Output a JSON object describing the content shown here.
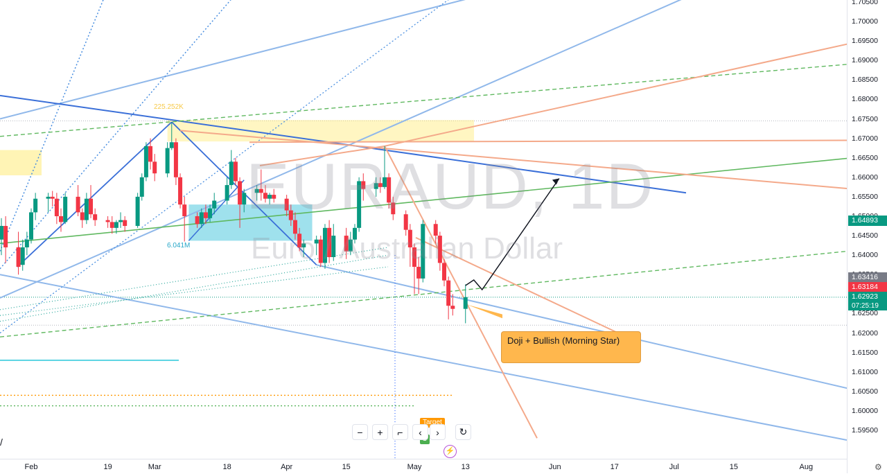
{
  "chart_data": {
    "type": "candlestick",
    "title": "EURAUD, 1D",
    "subtitle": "Euro / Australian Dollar",
    "ylim": [
      1.5925,
      1.7055
    ],
    "y_ticks": [
      "1.70500",
      "1.70000",
      "1.69500",
      "1.69000",
      "1.68500",
      "1.68000",
      "1.67500",
      "1.67000",
      "1.66500",
      "1.66000",
      "1.65500",
      "1.65000",
      "1.64500",
      "1.64000",
      "1.63500",
      "1.63000",
      "1.62500",
      "1.62000",
      "1.61500",
      "1.61000",
      "1.60500",
      "1.60000",
      "1.59500"
    ],
    "x_ticks": [
      {
        "label": "Feb",
        "date": "2024-02-01"
      },
      {
        "label": "19",
        "date": "2024-02-19"
      },
      {
        "label": "Mar",
        "date": "2024-03-01"
      },
      {
        "label": "18",
        "date": "2024-03-18"
      },
      {
        "label": "Apr",
        "date": "2024-04-01"
      },
      {
        "label": "15",
        "date": "2024-04-15"
      },
      {
        "label": "May",
        "date": "2024-05-01"
      },
      {
        "label": "13",
        "date": "2024-05-13"
      },
      {
        "label": "Jun",
        "date": "2024-06-03"
      },
      {
        "label": "17",
        "date": "2024-06-17"
      },
      {
        "label": "Jul",
        "date": "2024-07-01"
      },
      {
        "label": "15",
        "date": "2024-07-15"
      },
      {
        "label": "Aug",
        "date": "2024-08-01"
      }
    ],
    "price_labels": [
      {
        "value": "1.64893",
        "color": "#089981"
      },
      {
        "value": "1.63416",
        "color": "#787b86"
      },
      {
        "value": "1.63184",
        "color": "#f23645"
      },
      {
        "value": "1.62923",
        "sub": "07:25:19",
        "color": "#089981"
      }
    ],
    "volume_labels": [
      {
        "text": "225.252K",
        "color": "#f7c948"
      },
      {
        "text": "6.041M",
        "color": "#26a6c8"
      }
    ],
    "annotation": "Doji + Bullish (Morning Star)",
    "candles": [
      {
        "date": "2024-01-25",
        "o": 1.644,
        "h": 1.6495,
        "l": 1.64,
        "c": 1.6475
      },
      {
        "date": "2024-01-26",
        "o": 1.6475,
        "h": 1.65,
        "l": 1.638,
        "c": 1.642
      },
      {
        "date": "2024-01-29",
        "o": 1.642,
        "h": 1.646,
        "l": 1.635,
        "c": 1.637
      },
      {
        "date": "2024-01-30",
        "o": 1.6375,
        "h": 1.644,
        "l": 1.636,
        "c": 1.642
      },
      {
        "date": "2024-01-31",
        "o": 1.642,
        "h": 1.646,
        "l": 1.64,
        "c": 1.644
      },
      {
        "date": "2024-02-01",
        "o": 1.644,
        "h": 1.652,
        "l": 1.643,
        "c": 1.651
      },
      {
        "date": "2024-02-02",
        "o": 1.651,
        "h": 1.656,
        "l": 1.649,
        "c": 1.6545
      },
      {
        "date": "2024-02-05",
        "o": 1.6545,
        "h": 1.656,
        "l": 1.651,
        "c": 1.655
      },
      {
        "date": "2024-02-06",
        "o": 1.655,
        "h": 1.6565,
        "l": 1.6525,
        "c": 1.6545
      },
      {
        "date": "2024-02-07",
        "o": 1.6545,
        "h": 1.656,
        "l": 1.648,
        "c": 1.65
      },
      {
        "date": "2024-02-08",
        "o": 1.65,
        "h": 1.652,
        "l": 1.646,
        "c": 1.6485
      },
      {
        "date": "2024-02-09",
        "o": 1.6485,
        "h": 1.656,
        "l": 1.648,
        "c": 1.655
      },
      {
        "date": "2024-02-12",
        "o": 1.655,
        "h": 1.658,
        "l": 1.65,
        "c": 1.651
      },
      {
        "date": "2024-02-13",
        "o": 1.651,
        "h": 1.652,
        "l": 1.647,
        "c": 1.649
      },
      {
        "date": "2024-02-14",
        "o": 1.649,
        "h": 1.656,
        "l": 1.648,
        "c": 1.6545
      },
      {
        "date": "2024-02-15",
        "o": 1.6545,
        "h": 1.658,
        "l": 1.6495,
        "c": 1.6505
      },
      {
        "date": "2024-02-16",
        "o": 1.6505,
        "h": 1.652,
        "l": 1.6475,
        "c": 1.649
      },
      {
        "date": "2024-02-19",
        "o": 1.649,
        "h": 1.65,
        "l": 1.647,
        "c": 1.6485
      },
      {
        "date": "2024-02-20",
        "o": 1.6485,
        "h": 1.65,
        "l": 1.6455,
        "c": 1.647
      },
      {
        "date": "2024-02-21",
        "o": 1.647,
        "h": 1.649,
        "l": 1.6455,
        "c": 1.6485
      },
      {
        "date": "2024-02-22",
        "o": 1.6485,
        "h": 1.651,
        "l": 1.647,
        "c": 1.649
      },
      {
        "date": "2024-02-23",
        "o": 1.649,
        "h": 1.65,
        "l": 1.646,
        "c": 1.6475
      },
      {
        "date": "2024-02-26",
        "o": 1.6475,
        "h": 1.656,
        "l": 1.647,
        "c": 1.655
      },
      {
        "date": "2024-02-27",
        "o": 1.655,
        "h": 1.661,
        "l": 1.654,
        "c": 1.66
      },
      {
        "date": "2024-02-28",
        "o": 1.66,
        "h": 1.669,
        "l": 1.659,
        "c": 1.668
      },
      {
        "date": "2024-02-29",
        "o": 1.668,
        "h": 1.67,
        "l": 1.662,
        "c": 1.664
      },
      {
        "date": "2024-03-01",
        "o": 1.664,
        "h": 1.666,
        "l": 1.659,
        "c": 1.661
      },
      {
        "date": "2024-03-04",
        "o": 1.661,
        "h": 1.669,
        "l": 1.66,
        "c": 1.6675
      },
      {
        "date": "2024-03-05",
        "o": 1.6675,
        "h": 1.6742,
        "l": 1.667,
        "c": 1.669
      },
      {
        "date": "2024-03-06",
        "o": 1.669,
        "h": 1.67,
        "l": 1.658,
        "c": 1.66
      },
      {
        "date": "2024-03-07",
        "o": 1.66,
        "h": 1.661,
        "l": 1.652,
        "c": 1.653
      },
      {
        "date": "2024-03-08",
        "o": 1.653,
        "h": 1.655,
        "l": 1.6435,
        "c": 1.65
      },
      {
        "date": "2024-03-11",
        "o": 1.65,
        "h": 1.651,
        "l": 1.647,
        "c": 1.648
      },
      {
        "date": "2024-03-12",
        "o": 1.648,
        "h": 1.652,
        "l": 1.647,
        "c": 1.651
      },
      {
        "date": "2024-03-13",
        "o": 1.651,
        "h": 1.653,
        "l": 1.648,
        "c": 1.6495
      },
      {
        "date": "2024-03-14",
        "o": 1.6495,
        "h": 1.653,
        "l": 1.6485,
        "c": 1.652
      },
      {
        "date": "2024-03-15",
        "o": 1.652,
        "h": 1.656,
        "l": 1.6505,
        "c": 1.654
      },
      {
        "date": "2024-03-18",
        "o": 1.654,
        "h": 1.66,
        "l": 1.653,
        "c": 1.658
      },
      {
        "date": "2024-03-19",
        "o": 1.658,
        "h": 1.667,
        "l": 1.657,
        "c": 1.664
      },
      {
        "date": "2024-03-20",
        "o": 1.664,
        "h": 1.665,
        "l": 1.658,
        "c": 1.659
      },
      {
        "date": "2024-03-21",
        "o": 1.659,
        "h": 1.66,
        "l": 1.647,
        "c": 1.653
      },
      {
        "date": "2024-03-22",
        "o": 1.653,
        "h": 1.657,
        "l": 1.651,
        "c": 1.656
      },
      {
        "date": "2024-03-25",
        "o": 1.656,
        "h": 1.658,
        "l": 1.654,
        "c": 1.657
      },
      {
        "date": "2024-03-26",
        "o": 1.657,
        "h": 1.662,
        "l": 1.654,
        "c": 1.656
      },
      {
        "date": "2024-03-27",
        "o": 1.656,
        "h": 1.658,
        "l": 1.6535,
        "c": 1.6545
      },
      {
        "date": "2024-03-28",
        "o": 1.6545,
        "h": 1.656,
        "l": 1.653,
        "c": 1.6555
      },
      {
        "date": "2024-03-29",
        "o": 1.6555,
        "h": 1.657,
        "l": 1.6535,
        "c": 1.6545
      },
      {
        "date": "2024-04-01",
        "o": 1.6545,
        "h": 1.6555,
        "l": 1.65,
        "c": 1.6515
      },
      {
        "date": "2024-04-02",
        "o": 1.6515,
        "h": 1.653,
        "l": 1.6475,
        "c": 1.649
      },
      {
        "date": "2024-04-03",
        "o": 1.649,
        "h": 1.651,
        "l": 1.644,
        "c": 1.6455
      },
      {
        "date": "2024-04-04",
        "o": 1.6455,
        "h": 1.647,
        "l": 1.641,
        "c": 1.642
      },
      {
        "date": "2024-04-05",
        "o": 1.642,
        "h": 1.644,
        "l": 1.6395,
        "c": 1.643
      },
      {
        "date": "2024-04-08",
        "o": 1.643,
        "h": 1.645,
        "l": 1.64,
        "c": 1.644
      },
      {
        "date": "2024-04-09",
        "o": 1.644,
        "h": 1.645,
        "l": 1.637,
        "c": 1.638
      },
      {
        "date": "2024-04-10",
        "o": 1.638,
        "h": 1.648,
        "l": 1.6365,
        "c": 1.647
      },
      {
        "date": "2024-04-11",
        "o": 1.647,
        "h": 1.649,
        "l": 1.638,
        "c": 1.6395
      },
      {
        "date": "2024-04-12",
        "o": 1.6395,
        "h": 1.648,
        "l": 1.6385,
        "c": 1.645
      },
      {
        "date": "2024-04-15",
        "o": 1.645,
        "h": 1.647,
        "l": 1.639,
        "c": 1.641
      },
      {
        "date": "2024-04-16",
        "o": 1.641,
        "h": 1.646,
        "l": 1.64,
        "c": 1.644
      },
      {
        "date": "2024-04-17",
        "o": 1.644,
        "h": 1.648,
        "l": 1.643,
        "c": 1.647
      },
      {
        "date": "2024-04-18",
        "o": 1.647,
        "h": 1.66,
        "l": 1.646,
        "c": 1.659
      },
      {
        "date": "2024-04-19",
        "o": 1.659,
        "h": 1.661,
        "l": 1.654,
        "c": 1.657
      },
      {
        "date": "2024-04-22",
        "o": 1.657,
        "h": 1.66,
        "l": 1.655,
        "c": 1.6585
      },
      {
        "date": "2024-04-23",
        "o": 1.6585,
        "h": 1.66,
        "l": 1.656,
        "c": 1.6575
      },
      {
        "date": "2024-04-24",
        "o": 1.6575,
        "h": 1.668,
        "l": 1.657,
        "c": 1.66
      },
      {
        "date": "2024-04-25",
        "o": 1.66,
        "h": 1.661,
        "l": 1.652,
        "c": 1.6535
      },
      {
        "date": "2024-04-26",
        "o": 1.6535,
        "h": 1.655,
        "l": 1.649,
        "c": 1.6505
      },
      {
        "date": "2024-04-29",
        "o": 1.6505,
        "h": 1.6515,
        "l": 1.645,
        "c": 1.6465
      },
      {
        "date": "2024-04-30",
        "o": 1.6465,
        "h": 1.648,
        "l": 1.637,
        "c": 1.642
      },
      {
        "date": "2024-05-01",
        "o": 1.642,
        "h": 1.643,
        "l": 1.63,
        "c": 1.637
      },
      {
        "date": "2024-05-02",
        "o": 1.637,
        "h": 1.6395,
        "l": 1.63,
        "c": 1.634
      },
      {
        "date": "2024-05-03",
        "o": 1.634,
        "h": 1.649,
        "l": 1.633,
        "c": 1.648
      },
      {
        "date": "2024-05-06",
        "o": 1.648,
        "h": 1.649,
        "l": 1.643,
        "c": 1.645
      },
      {
        "date": "2024-05-07",
        "o": 1.645,
        "h": 1.646,
        "l": 1.636,
        "c": 1.638
      },
      {
        "date": "2024-05-08",
        "o": 1.638,
        "h": 1.639,
        "l": 1.632,
        "c": 1.6335
      },
      {
        "date": "2024-05-09",
        "o": 1.6335,
        "h": 1.6345,
        "l": 1.6235,
        "c": 1.627
      },
      {
        "date": "2024-05-10",
        "o": 1.627,
        "h": 1.63,
        "l": 1.6245,
        "c": 1.6262
      },
      {
        "date": "2024-05-13",
        "o": 1.6262,
        "h": 1.6325,
        "l": 1.6225,
        "c": 1.6292
      }
    ]
  },
  "overlay_labels": {
    "tag_orange": "Target",
    "tag_green": "1",
    "corner_mark": "/"
  },
  "icons": {
    "settings": "settings-icon",
    "lightning": "lightning-icon"
  },
  "toolbar": {
    "zoom_out": "−",
    "zoom_in": "+",
    "reset_scale": "⌐",
    "scroll_left": "‹",
    "scroll_right": "›",
    "refresh": "↻"
  }
}
